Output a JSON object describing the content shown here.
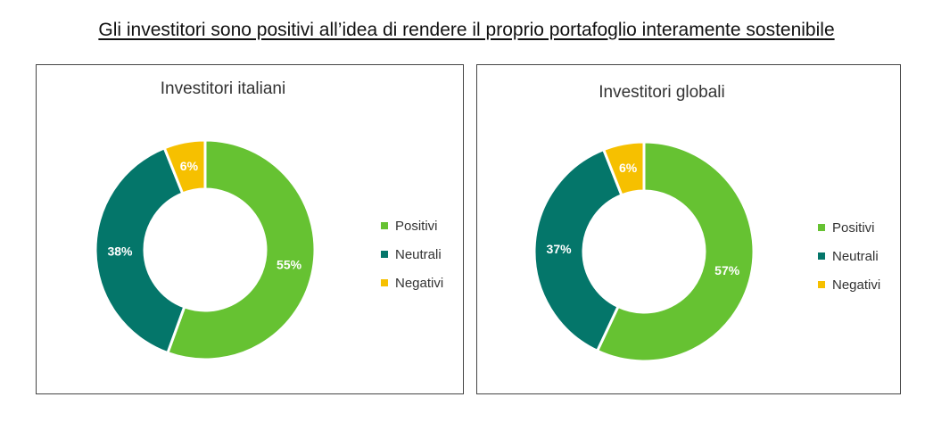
{
  "page": {
    "title": "Gli investitori sono positivi all’idea di rendere il proprio portafoglio interamente sostenibile"
  },
  "colors": {
    "positivi": "#66c232",
    "neutrali": "#04766a",
    "negativi": "#f6c000"
  },
  "chart_data": [
    {
      "type": "pie",
      "style": "donut",
      "title": "Investitori italiani",
      "categories": [
        "Positivi",
        "Neutrali",
        "Negativi"
      ],
      "values": [
        55,
        38,
        6
      ],
      "labels": [
        "55%",
        "38%",
        "6%"
      ],
      "legend": "right"
    },
    {
      "type": "pie",
      "style": "donut",
      "title": "Investitori globali",
      "categories": [
        "Positivi",
        "Neutrali",
        "Negativi"
      ],
      "values": [
        57,
        37,
        6
      ],
      "labels": [
        "57%",
        "37%",
        "6%"
      ],
      "legend": "right"
    }
  ]
}
